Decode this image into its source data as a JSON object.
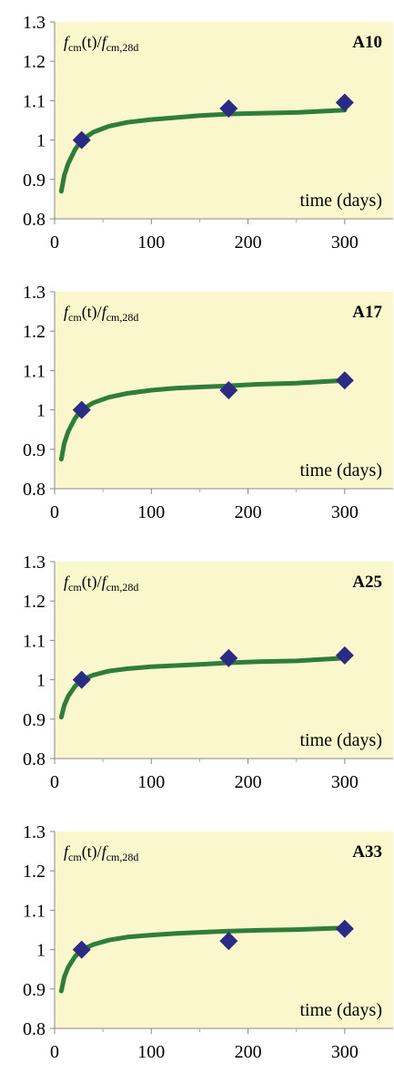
{
  "chart_data": [
    {
      "type": "scatter",
      "title": "A10",
      "ylabel": {
        "f1": "f",
        "s1": "cm",
        "mid": "(t)/",
        "f2": "f",
        "s2": "cm,28d"
      },
      "xlabel": "time (days)",
      "xlim": [
        0,
        350
      ],
      "ylim": [
        0.8,
        1.3
      ],
      "xticks": [
        0,
        100,
        200,
        300
      ],
      "yticks": [
        0.8,
        0.9,
        1,
        1.1,
        1.2,
        1.3
      ],
      "grid": false,
      "background": "#fbf7cc",
      "series": [
        {
          "kind": "markers",
          "color": "#2b2a84",
          "x": [
            28,
            180,
            300
          ],
          "y": [
            1.0,
            1.08,
            1.095
          ]
        },
        {
          "kind": "line",
          "color": "#2e7d3a",
          "x": [
            7,
            10,
            14,
            21,
            28,
            40,
            56,
            75,
            100,
            125,
            150,
            180,
            210,
            250,
            300
          ],
          "y": [
            0.87,
            0.91,
            0.94,
            0.975,
            1.0,
            1.02,
            1.035,
            1.045,
            1.052,
            1.057,
            1.062,
            1.066,
            1.068,
            1.07,
            1.076
          ]
        }
      ]
    },
    {
      "type": "scatter",
      "title": "A17",
      "ylabel": {
        "f1": "f",
        "s1": "cm",
        "mid": "(t)/",
        "f2": "f",
        "s2": "cm,28d"
      },
      "xlabel": "time (days)",
      "xlim": [
        0,
        350
      ],
      "ylim": [
        0.8,
        1.3
      ],
      "xticks": [
        0,
        100,
        200,
        300
      ],
      "yticks": [
        0.8,
        0.9,
        1,
        1.1,
        1.2,
        1.3
      ],
      "grid": false,
      "background": "#fbf7cc",
      "series": [
        {
          "kind": "markers",
          "color": "#2b2a84",
          "x": [
            28,
            180,
            300
          ],
          "y": [
            1.0,
            1.05,
            1.075
          ]
        },
        {
          "kind": "line",
          "color": "#2e7d3a",
          "x": [
            7,
            10,
            14,
            21,
            28,
            40,
            56,
            75,
            100,
            125,
            150,
            180,
            210,
            250,
            300
          ],
          "y": [
            0.875,
            0.915,
            0.945,
            0.978,
            1.0,
            1.018,
            1.032,
            1.042,
            1.05,
            1.055,
            1.058,
            1.061,
            1.065,
            1.068,
            1.075
          ]
        }
      ]
    },
    {
      "type": "scatter",
      "title": "A25",
      "ylabel": {
        "f1": "f",
        "s1": "cm",
        "mid": "(t)/",
        "f2": "f",
        "s2": "cm,28d"
      },
      "xlabel": "time (days)",
      "xlim": [
        0,
        350
      ],
      "ylim": [
        0.8,
        1.3
      ],
      "xticks": [
        0,
        100,
        200,
        300
      ],
      "yticks": [
        0.8,
        0.9,
        1,
        1.1,
        1.2,
        1.3
      ],
      "grid": false,
      "background": "#fbf7cc",
      "series": [
        {
          "kind": "markers",
          "color": "#2b2a84",
          "x": [
            28,
            180,
            300
          ],
          "y": [
            1.0,
            1.055,
            1.062
          ]
        },
        {
          "kind": "line",
          "color": "#2e7d3a",
          "x": [
            7,
            10,
            14,
            21,
            28,
            40,
            56,
            75,
            100,
            125,
            150,
            180,
            210,
            250,
            300
          ],
          "y": [
            0.905,
            0.935,
            0.958,
            0.983,
            1.0,
            1.012,
            1.022,
            1.028,
            1.033,
            1.036,
            1.039,
            1.043,
            1.046,
            1.048,
            1.055
          ]
        }
      ]
    },
    {
      "type": "scatter",
      "title": "A33",
      "ylabel": {
        "f1": "f",
        "s1": "cm",
        "mid": "(t)/",
        "f2": "f",
        "s2": "cm,28d"
      },
      "xlabel": "time (days)",
      "xlim": [
        0,
        350
      ],
      "ylim": [
        0.8,
        1.3
      ],
      "xticks": [
        0,
        100,
        200,
        300
      ],
      "yticks": [
        0.8,
        0.9,
        1,
        1.1,
        1.2,
        1.3
      ],
      "grid": false,
      "background": "#fbf7cc",
      "series": [
        {
          "kind": "markers",
          "color": "#2b2a84",
          "x": [
            28,
            180,
            300
          ],
          "y": [
            1.0,
            1.022,
            1.053
          ]
        },
        {
          "kind": "line",
          "color": "#2e7d3a",
          "x": [
            7,
            10,
            14,
            21,
            28,
            40,
            56,
            75,
            100,
            125,
            150,
            180,
            210,
            250,
            300
          ],
          "y": [
            0.895,
            0.93,
            0.955,
            0.982,
            1.0,
            1.013,
            1.024,
            1.032,
            1.037,
            1.041,
            1.044,
            1.047,
            1.049,
            1.051,
            1.055
          ]
        }
      ]
    }
  ]
}
